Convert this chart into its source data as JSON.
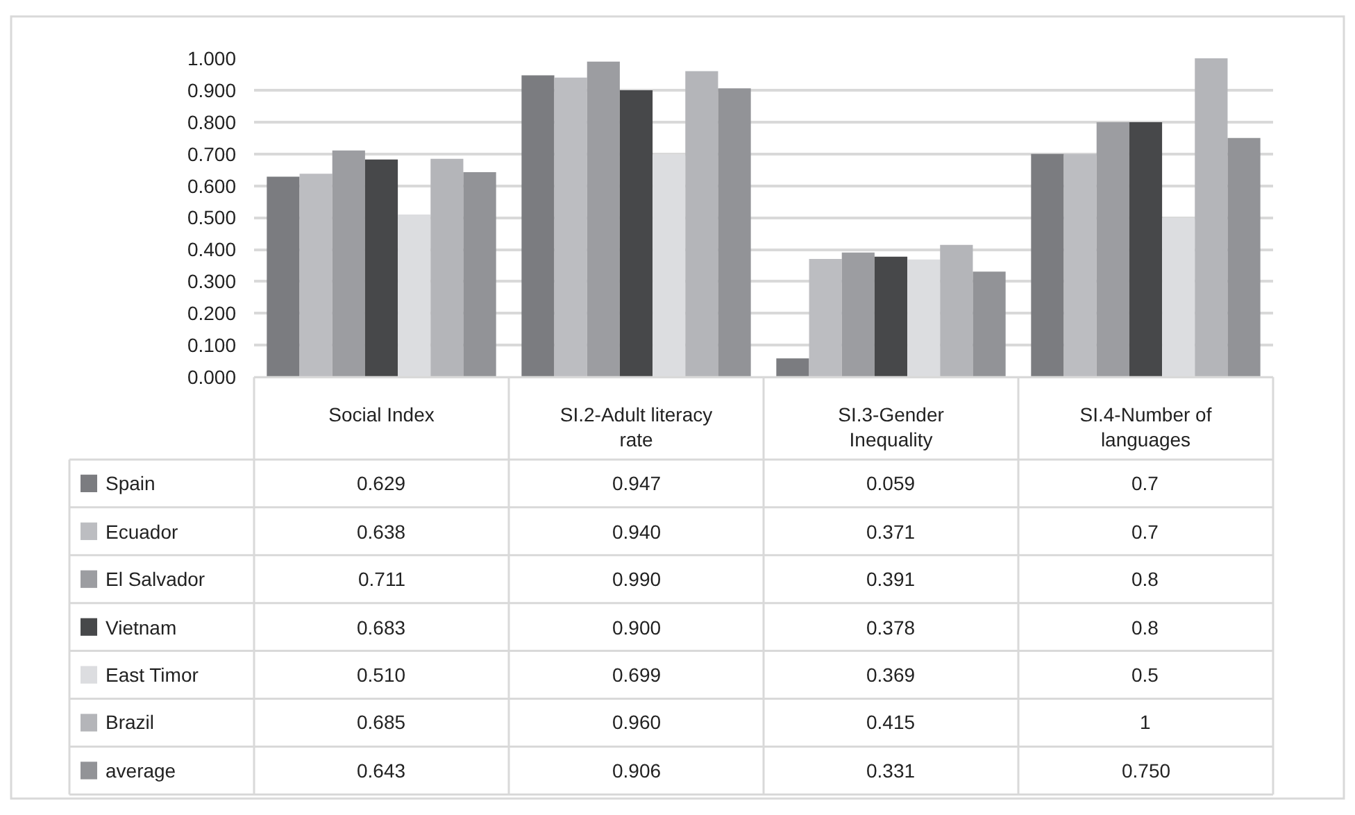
{
  "chart_data": {
    "type": "bar",
    "categories": [
      "Social Index",
      "SI.2-Adult literacy rate",
      "SI.3-Gender Inequality",
      "SI.4-Number of languages"
    ],
    "series": [
      {
        "name": "Spain",
        "color": "#7b7c80",
        "values": [
          0.629,
          0.947,
          0.059,
          0.7
        ],
        "value_labels": [
          "0.629",
          "0.947",
          "0.059",
          "0.7"
        ]
      },
      {
        "name": "Ecuador",
        "color": "#bcbdc1",
        "values": [
          0.638,
          0.94,
          0.371,
          0.7
        ],
        "value_labels": [
          "0.638",
          "0.940",
          "0.371",
          "0.7"
        ]
      },
      {
        "name": "El Salvador",
        "color": "#9c9da1",
        "values": [
          0.711,
          0.99,
          0.391,
          0.8
        ],
        "value_labels": [
          "0.711",
          "0.990",
          "0.391",
          "0.8"
        ]
      },
      {
        "name": "Vietnam",
        "color": "#47484a",
        "values": [
          0.683,
          0.9,
          0.378,
          0.8
        ],
        "value_labels": [
          "0.683",
          "0.900",
          "0.378",
          "0.8"
        ]
      },
      {
        "name": "East Timor",
        "color": "#dcdde0",
        "values": [
          0.51,
          0.699,
          0.369,
          0.5
        ],
        "value_labels": [
          "0.510",
          "0.699",
          "0.369",
          "0.5"
        ]
      },
      {
        "name": "Brazil",
        "color": "#b4b5b9",
        "values": [
          0.685,
          0.96,
          0.415,
          1
        ],
        "value_labels": [
          "0.685",
          "0.960",
          "0.415",
          "1"
        ]
      },
      {
        "name": "average",
        "color": "#929397",
        "values": [
          0.643,
          0.906,
          0.331,
          0.75
        ],
        "value_labels": [
          "0.643",
          "0.906",
          "0.331",
          "0.750"
        ]
      }
    ],
    "ylim": [
      0,
      1
    ],
    "yticks": [
      {
        "value": 0,
        "label": "0.000"
      },
      {
        "value": 0.1,
        "label": "0.100"
      },
      {
        "value": 0.2,
        "label": "0.200"
      },
      {
        "value": 0.3,
        "label": "0.300"
      },
      {
        "value": 0.4,
        "label": "0.400"
      },
      {
        "value": 0.5,
        "label": "0.500"
      },
      {
        "value": 0.6,
        "label": "0.600"
      },
      {
        "value": 0.7,
        "label": "0.700"
      },
      {
        "value": 0.8,
        "label": "0.800"
      },
      {
        "value": 0.9,
        "label": "0.900"
      },
      {
        "value": 1,
        "label": "1.000"
      }
    ],
    "grid": "y",
    "legend": "bottom left"
  }
}
